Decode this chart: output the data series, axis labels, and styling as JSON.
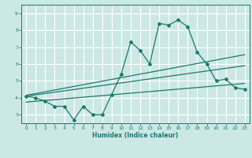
{
  "title": "",
  "xlabel": "Humidex (Indice chaleur)",
  "ylabel": "",
  "bg_color": "#cce8e5",
  "line_color": "#1a7a6e",
  "grid_color": "#ffffff",
  "xlim": [
    -0.5,
    23.5
  ],
  "ylim": [
    2.5,
    9.5
  ],
  "xticks": [
    0,
    1,
    2,
    3,
    4,
    5,
    6,
    7,
    8,
    9,
    10,
    11,
    12,
    13,
    14,
    15,
    16,
    17,
    18,
    19,
    20,
    21,
    22,
    23
  ],
  "yticks": [
    3,
    4,
    5,
    6,
    7,
    8,
    9
  ],
  "main_x": [
    0,
    1,
    2,
    3,
    4,
    5,
    6,
    7,
    8,
    9,
    10,
    11,
    12,
    13,
    14,
    15,
    16,
    17,
    18,
    19,
    20,
    21,
    22,
    23
  ],
  "main_y": [
    4.1,
    4.0,
    3.8,
    3.5,
    3.5,
    2.7,
    3.5,
    3.0,
    3.0,
    4.2,
    5.4,
    7.3,
    6.8,
    6.0,
    8.4,
    8.3,
    8.6,
    8.2,
    6.7,
    6.0,
    5.0,
    5.1,
    4.6,
    4.5
  ],
  "line1_x": [
    0,
    23
  ],
  "line1_y": [
    4.15,
    6.55
  ],
  "line2_x": [
    0,
    23
  ],
  "line2_y": [
    4.1,
    5.9
  ],
  "line3_x": [
    0,
    23
  ],
  "line3_y": [
    3.75,
    4.85
  ]
}
